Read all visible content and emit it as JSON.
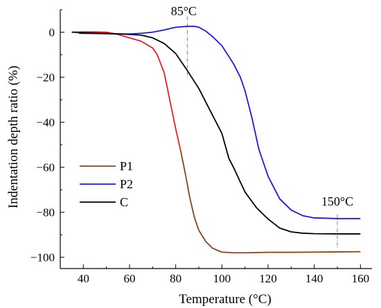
{
  "chart_data": {
    "type": "line",
    "xlabel": "Temperature (°C)",
    "ylabel": "Indentation depth ratio (%)",
    "xlim": [
      30,
      165
    ],
    "ylim": [
      -100,
      10
    ],
    "xticks": [
      "40",
      "60",
      "80",
      "100",
      "120",
      "140",
      "160"
    ],
    "yticks": [
      "0",
      "-20",
      "-40",
      "-60",
      "-80",
      "-100"
    ],
    "legend_position": "lower-left",
    "grid": false,
    "series": [
      {
        "name": "P1",
        "color": "#e32222",
        "tail_color": "#8b4513",
        "x": [
          35,
          40,
          45,
          50,
          55,
          60,
          65,
          70,
          72,
          75,
          78,
          80,
          82,
          84,
          86,
          88,
          90,
          93,
          96,
          100,
          105,
          110,
          120,
          130,
          140,
          150,
          160
        ],
        "y": [
          0,
          0.1,
          0.1,
          0,
          -1,
          -2.5,
          -4,
          -7,
          -10,
          -18,
          -33,
          -43,
          -52,
          -62,
          -73,
          -82,
          -88,
          -93,
          -96,
          -97.7,
          -98,
          -98,
          -97.8,
          -97.8,
          -97.7,
          -97.6,
          -97.5
        ]
      },
      {
        "name": "P2",
        "color": "#1a1ae0",
        "x": [
          38,
          45,
          50,
          55,
          60,
          65,
          70,
          75,
          80,
          85,
          88,
          90,
          93,
          96,
          100,
          105,
          108,
          110,
          113,
          116,
          120,
          125,
          130,
          135,
          140,
          150,
          160
        ],
        "y": [
          -0.5,
          -0.6,
          -0.7,
          -0.8,
          -0.8,
          -0.5,
          0,
          1,
          2.2,
          2.6,
          2.6,
          2.2,
          0.5,
          -2,
          -6,
          -14,
          -20,
          -26,
          -38,
          -52,
          -64,
          -74,
          -79,
          -81.5,
          -82.5,
          -82.8,
          -82.8
        ]
      },
      {
        "name": "C",
        "color": "#000000",
        "x": [
          35,
          40,
          50,
          60,
          65,
          70,
          75,
          80,
          85,
          90,
          95,
          100,
          103,
          105,
          110,
          115,
          120,
          125,
          130,
          135,
          140,
          150,
          160
        ],
        "y": [
          0,
          -0.2,
          -0.5,
          -1,
          -1.3,
          -2.5,
          -5,
          -9.5,
          -17,
          -25,
          -35,
          -45,
          -56,
          -60,
          -71,
          -78,
          -83,
          -87,
          -88.7,
          -89.3,
          -89.5,
          -89.6,
          -89.6
        ]
      }
    ],
    "annotations": [
      {
        "text": "85°C",
        "x": 85
      },
      {
        "text": "150°C",
        "x": 150
      }
    ]
  }
}
